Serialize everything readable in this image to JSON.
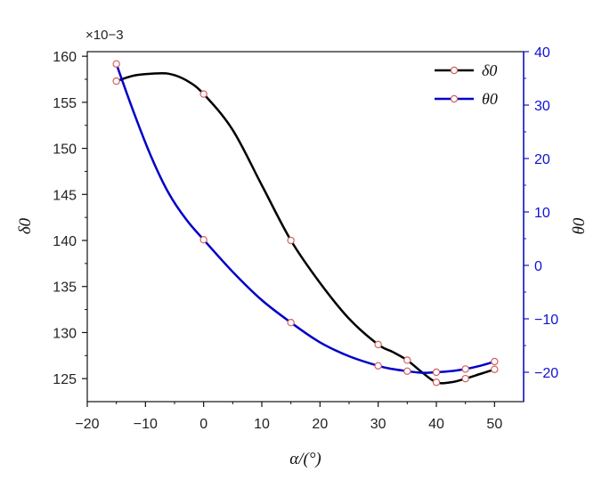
{
  "chart_data": {
    "type": "line",
    "xlabel": "α/(°)",
    "ylabel_left": "δ0",
    "ylabel_right": "θ0",
    "y_left_multiplier": "×10−3",
    "xlim": [
      -20,
      55
    ],
    "ylim_left": [
      122.5,
      160.5
    ],
    "ylim_right": [
      -25.5,
      40
    ],
    "x_ticks": [
      -20,
      -10,
      0,
      10,
      20,
      30,
      40,
      50
    ],
    "y_left_ticks": [
      125,
      130,
      135,
      140,
      145,
      150,
      155,
      160
    ],
    "y_right_ticks": [
      -20,
      -10,
      0,
      10,
      20,
      30,
      40
    ],
    "x_tick_labels": [
      "−20",
      "−10",
      "0",
      "10",
      "20",
      "30",
      "40",
      "50"
    ],
    "y_left_tick_labels": [
      "125",
      "130",
      "135",
      "140",
      "145",
      "150",
      "155",
      "160"
    ],
    "y_right_tick_labels": [
      "−20",
      "−10",
      "0",
      "10",
      "20",
      "30",
      "40"
    ],
    "legend_position": "top-right",
    "grid": false,
    "series": [
      {
        "name": "δ0",
        "axis": "left",
        "color": "#000000",
        "x": [
          -15,
          0,
          15,
          30,
          35,
          40,
          45,
          50
        ],
        "y": [
          157.3,
          155.9,
          140.0,
          128.7,
          127.0,
          124.6,
          125.0,
          126.0
        ],
        "curve_x": [
          -15,
          -12,
          -9,
          -6,
          -3,
          0,
          5,
          10,
          15,
          20,
          25,
          30,
          32.5,
          35,
          37.5,
          40,
          42.5,
          45,
          47.5,
          50
        ],
        "curve_y": [
          157.3,
          157.9,
          158.1,
          158.1,
          157.4,
          155.9,
          152.0,
          146.0,
          140.0,
          135.4,
          131.5,
          128.7,
          127.9,
          127.0,
          125.7,
          124.6,
          124.6,
          125.0,
          125.5,
          126.0
        ]
      },
      {
        "name": "θ0",
        "axis": "right",
        "color": "#0000c8",
        "x": [
          -15,
          0,
          15,
          30,
          35,
          40,
          45,
          50
        ],
        "y": [
          37.7,
          4.8,
          -10.7,
          -18.8,
          -19.8,
          -20.0,
          -19.4,
          -18.0
        ],
        "curve_x": [
          -15,
          -12,
          -9,
          -6,
          -3,
          0,
          5,
          10,
          15,
          20,
          25,
          30,
          32.5,
          35,
          37.5,
          40,
          42.5,
          45,
          47.5,
          50
        ],
        "curve_y": [
          37.7,
          28.6,
          20.3,
          13.5,
          8.6,
          4.8,
          -1.2,
          -6.5,
          -10.7,
          -14.4,
          -17.0,
          -18.8,
          -19.4,
          -19.8,
          -20.1,
          -20.0,
          -19.8,
          -19.4,
          -18.8,
          -18.0
        ]
      }
    ]
  }
}
